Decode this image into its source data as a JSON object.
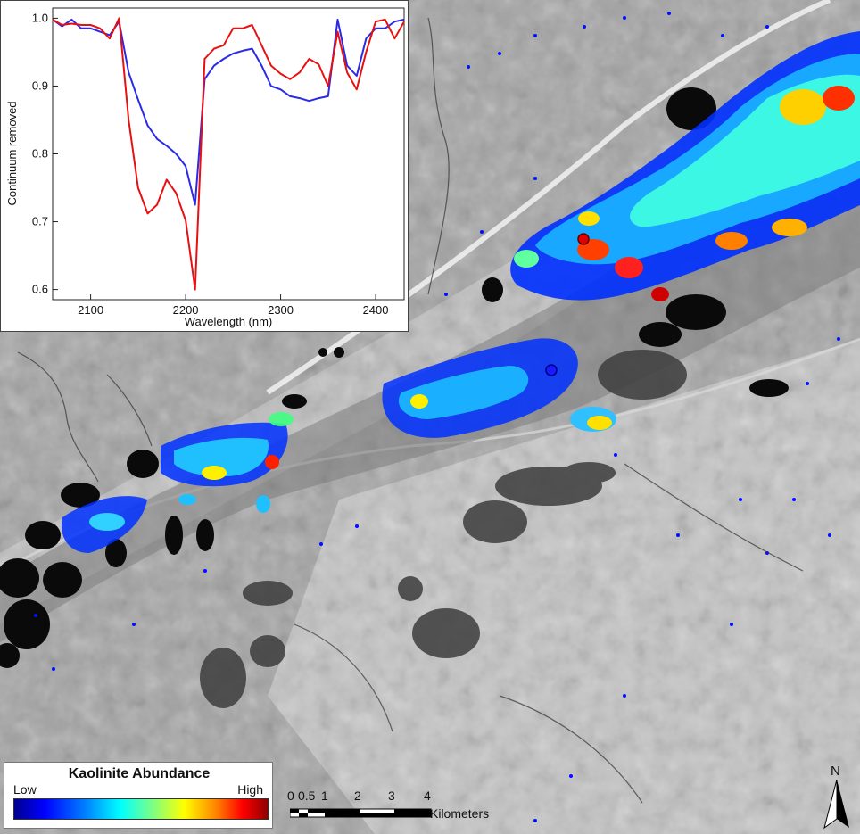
{
  "inset_chart": {
    "chart_data": {
      "type": "line",
      "xlabel": "Wavelength (nm)",
      "ylabel": "Continuum removed",
      "xlim": [
        2060,
        2430
      ],
      "ylim": [
        0.585,
        1.015
      ],
      "x_ticks": [
        "2100",
        "2200",
        "2300",
        "2400"
      ],
      "y_ticks": [
        "0.6",
        "0.7",
        "0.8",
        "0.9",
        "1.0"
      ],
      "grid": false,
      "series": [
        {
          "color": "#2a2ae8",
          "x": [
            2060,
            2070,
            2080,
            2090,
            2100,
            2110,
            2120,
            2130,
            2140,
            2150,
            2160,
            2170,
            2180,
            2190,
            2200,
            2210,
            2220,
            2230,
            2240,
            2250,
            2260,
            2270,
            2280,
            2290,
            2300,
            2310,
            2320,
            2330,
            2340,
            2350,
            2360,
            2370,
            2380,
            2390,
            2400,
            2410,
            2420,
            2430
          ],
          "y": [
            0.998,
            0.988,
            0.998,
            0.985,
            0.985,
            0.98,
            0.975,
            0.995,
            0.92,
            0.88,
            0.842,
            0.822,
            0.812,
            0.8,
            0.782,
            0.725,
            0.91,
            0.93,
            0.94,
            0.948,
            0.952,
            0.955,
            0.93,
            0.9,
            0.895,
            0.885,
            0.882,
            0.878,
            0.882,
            0.885,
            0.998,
            0.93,
            0.915,
            0.97,
            0.985,
            0.985,
            0.995,
            0.998
          ]
        },
        {
          "color": "#e81010",
          "x": [
            2060,
            2070,
            2080,
            2090,
            2100,
            2110,
            2120,
            2130,
            2140,
            2150,
            2160,
            2170,
            2180,
            2190,
            2200,
            2210,
            2220,
            2230,
            2240,
            2250,
            2260,
            2270,
            2280,
            2290,
            2300,
            2310,
            2320,
            2330,
            2340,
            2350,
            2360,
            2370,
            2380,
            2390,
            2400,
            2410,
            2420,
            2430
          ],
          "y": [
            0.998,
            0.99,
            0.992,
            0.99,
            0.99,
            0.985,
            0.97,
            1.0,
            0.85,
            0.75,
            0.712,
            0.725,
            0.762,
            0.742,
            0.702,
            0.6,
            0.94,
            0.955,
            0.96,
            0.985,
            0.985,
            0.99,
            0.96,
            0.93,
            0.918,
            0.91,
            0.92,
            0.94,
            0.932,
            0.9,
            0.98,
            0.92,
            0.895,
            0.95,
            0.995,
            0.998,
            0.97,
            0.995
          ]
        }
      ]
    }
  },
  "legend": {
    "title": "Kaolinite Abundance",
    "low_label": "Low",
    "high_label": "High"
  },
  "scale_bar": {
    "labels": [
      "0",
      "0.5",
      "1",
      "2",
      "3",
      "4"
    ],
    "unit": "Kilometers"
  },
  "north_arrow": {
    "label": "N"
  },
  "sample_points": [
    {
      "color": "#e00000"
    },
    {
      "color": "#1a1aff"
    }
  ]
}
